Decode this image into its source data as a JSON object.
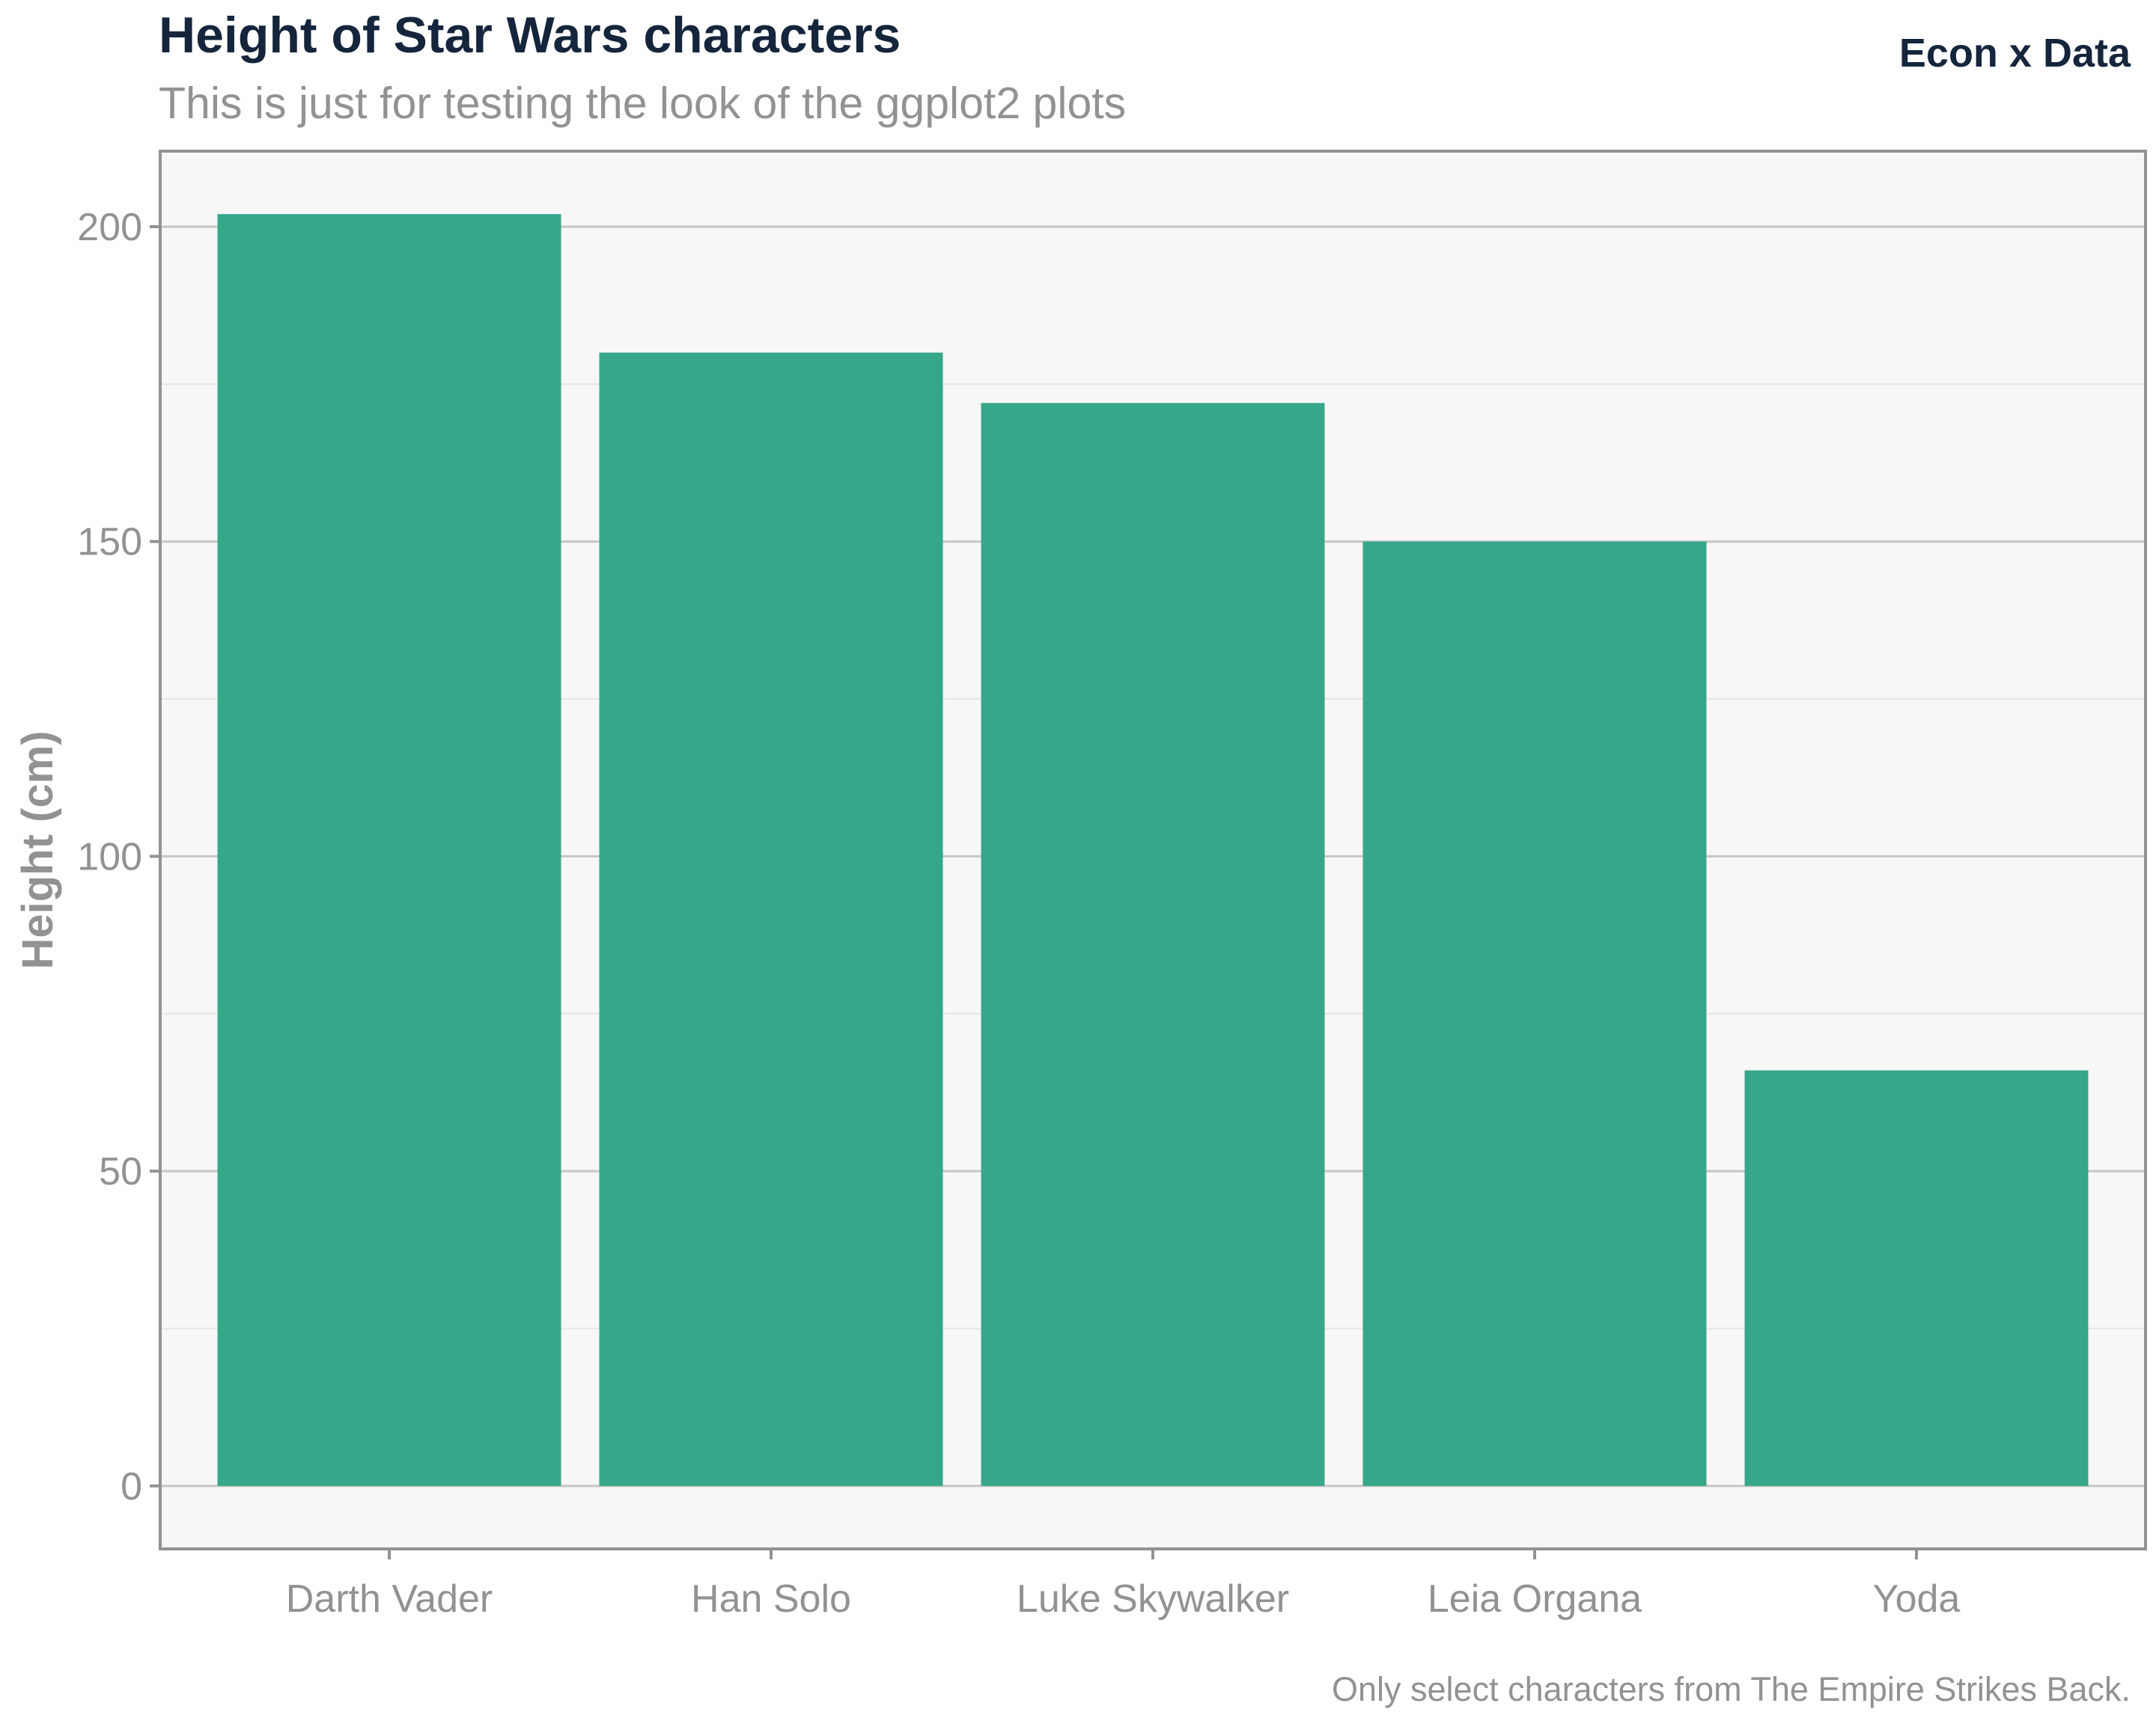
{
  "header": {
    "title": "Height of Star Wars characters",
    "subtitle": "This is just for testing the look of the ggplot2 plots",
    "brand": "Econ x Data"
  },
  "footer": {
    "caption": "Only select characters from The Empire Strikes Back."
  },
  "colors": {
    "bar": "#37a78a",
    "panel_background": "#f7f7f7",
    "panel_border": "#929292",
    "grid_major": "#c6c6c6",
    "grid_minor": "#e6e6e6",
    "title": "#15253b",
    "muted_text": "#929292"
  },
  "chart_data": {
    "type": "bar",
    "title": "Height of Star Wars characters",
    "subtitle": "This is just for testing the look of the ggplot2 plots",
    "xlabel": "",
    "ylabel": "Height (cm)",
    "categories": [
      "Darth Vader",
      "Han Solo",
      "Luke Skywalker",
      "Leia Organa",
      "Yoda"
    ],
    "values": [
      202,
      180,
      172,
      150,
      66
    ],
    "ylim": [
      -10,
      212
    ],
    "yticks": [
      0,
      50,
      100,
      150,
      200
    ],
    "grid": true,
    "legend": "none",
    "caption": "Only select characters from The Empire Strikes Back."
  }
}
